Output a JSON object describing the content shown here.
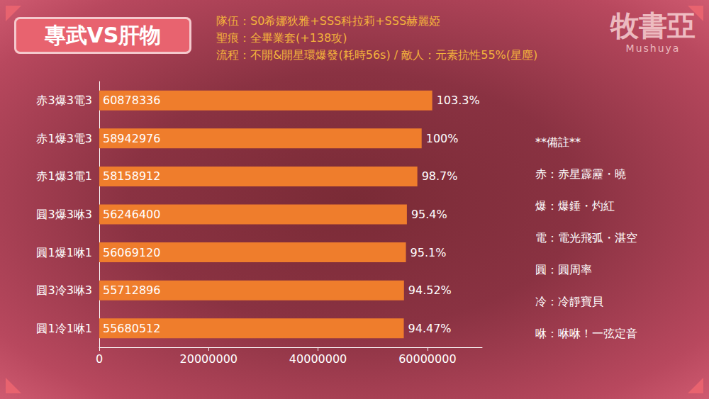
{
  "title": "專武VS肝物",
  "header_lines": [
    "隊伍：S0希娜狄雅+SSS科拉莉+SSS赫麗婭",
    "聖痕：全畢業套(+138攻)",
    "流程：不開&開星環爆發(耗時56s) / 敵人：元素抗性55%(星塵)"
  ],
  "watermark": {
    "text": "牧書亞",
    "subtext": "Mushuya"
  },
  "notes": {
    "title": "**備註**",
    "items": [
      "赤：赤星霹靂・曉",
      "爆：爆錘・灼紅",
      "電：電光飛弧・湛空",
      "圓：圓周率",
      "冷：冷靜寶貝",
      "咻：咻咻！一弦定音"
    ]
  },
  "chart_data": {
    "type": "bar",
    "orientation": "horizontal",
    "categories": [
      "赤3爆3電3",
      "赤1爆3電3",
      "赤1爆3電1",
      "圓3爆3咻3",
      "圓1爆1咻1",
      "圓3冷3咻3",
      "圓1冷1咻1"
    ],
    "values": [
      60878336,
      58942976,
      58158912,
      56246400,
      56069120,
      55712896,
      55680512
    ],
    "percent_labels": [
      "103.3%",
      "100%",
      "98.7%",
      "95.4%",
      "95.1%",
      "94.52%",
      "94.47%"
    ],
    "color": "#ef7d2c",
    "data_labels": true,
    "xlim": [
      0,
      70000000
    ],
    "xticks": [
      0,
      20000000,
      40000000,
      60000000
    ],
    "grid": false
  }
}
